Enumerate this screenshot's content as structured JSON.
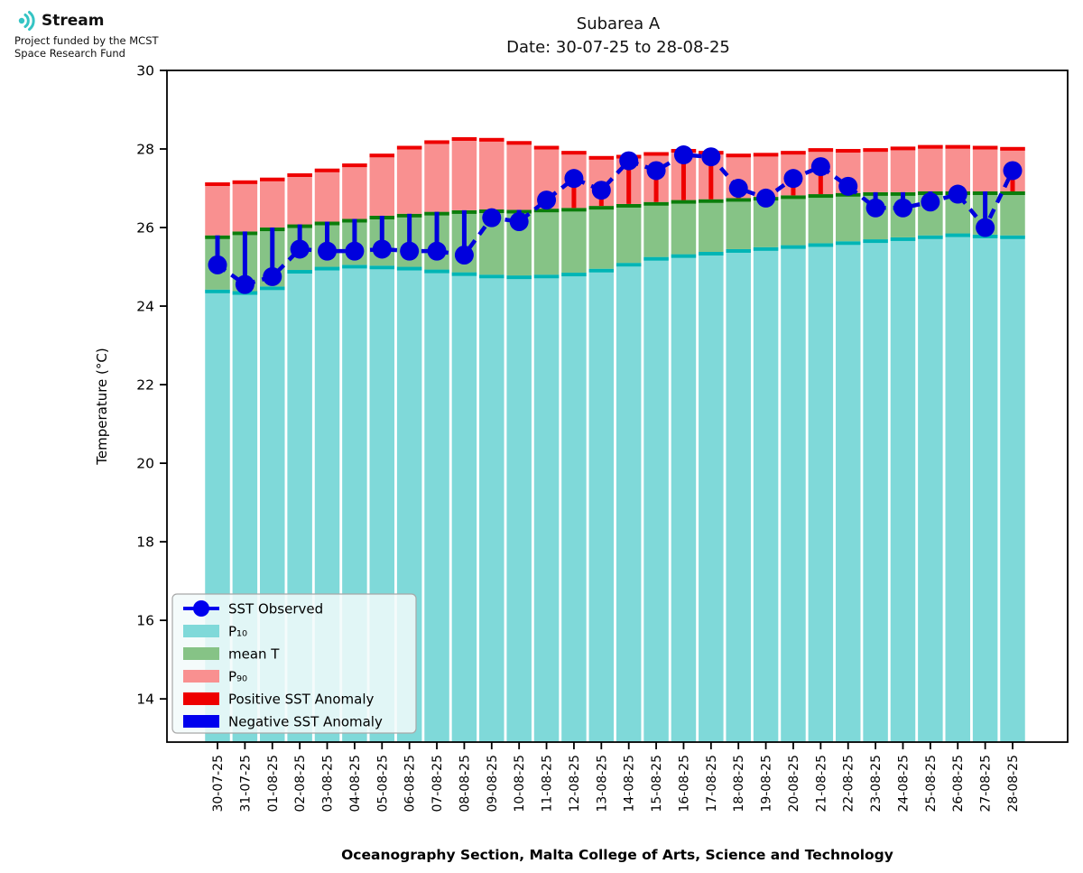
{
  "brand": {
    "name": "Stream",
    "subtitle": "Project funded by the MCST\nSpace Research Fund",
    "icon_color": "#35c4c4"
  },
  "title_line1": "Subarea A",
  "title_line2": "Date: 30-07-25 to 28-08-25",
  "chart_data": {
    "type": "bar-line-combo",
    "title": "Subarea A",
    "subtitle": "Date: 30-07-25 to 28-08-25",
    "xlabel": "Oceanography Section, Malta College of Arts, Science and Technology",
    "ylabel": "Temperature (°C)",
    "ylim": [
      12.9,
      30
    ],
    "yticks": [
      14,
      16,
      18,
      20,
      22,
      24,
      26,
      28,
      30
    ],
    "grid": false,
    "legend_position": "lower-left",
    "categories": [
      "30-07-25",
      "31-07-25",
      "01-08-25",
      "02-08-25",
      "03-08-25",
      "04-08-25",
      "05-08-25",
      "06-08-25",
      "07-08-25",
      "08-08-25",
      "09-08-25",
      "10-08-25",
      "11-08-25",
      "12-08-25",
      "13-08-25",
      "14-08-25",
      "15-08-25",
      "16-08-25",
      "17-08-25",
      "18-08-25",
      "19-08-25",
      "20-08-25",
      "21-08-25",
      "22-08-25",
      "23-08-25",
      "24-08-25",
      "25-08-25",
      "26-08-25",
      "27-08-25",
      "28-08-25"
    ],
    "series": [
      {
        "name": "SST Observed",
        "type": "line",
        "values": [
          25.05,
          24.55,
          24.75,
          25.45,
          25.4,
          25.4,
          25.45,
          25.4,
          25.4,
          25.3,
          26.25,
          26.15,
          26.7,
          27.25,
          26.95,
          27.7,
          27.45,
          27.85,
          27.8,
          27.0,
          26.75,
          27.25,
          27.55,
          27.05,
          26.5,
          26.5,
          26.65,
          26.85,
          26.0,
          27.45
        ]
      },
      {
        "name": "P10",
        "type": "bar",
        "values": [
          24.42,
          24.38,
          24.5,
          24.92,
          25.0,
          25.05,
          25.03,
          25.0,
          24.93,
          24.86,
          24.8,
          24.78,
          24.8,
          24.85,
          24.95,
          25.1,
          25.25,
          25.32,
          25.38,
          25.45,
          25.5,
          25.55,
          25.6,
          25.65,
          25.7,
          25.75,
          25.8,
          25.85,
          25.82,
          25.8
        ]
      },
      {
        "name": "mean T",
        "type": "bar",
        "values": [
          25.8,
          25.9,
          26.0,
          26.08,
          26.15,
          26.22,
          26.3,
          26.35,
          26.4,
          26.44,
          26.46,
          26.45,
          26.48,
          26.5,
          26.55,
          26.6,
          26.65,
          26.7,
          26.72,
          26.75,
          26.78,
          26.82,
          26.85,
          26.88,
          26.9,
          26.9,
          26.92,
          26.92,
          26.92,
          26.92
        ]
      },
      {
        "name": "P90",
        "type": "bar",
        "values": [
          27.15,
          27.2,
          27.27,
          27.38,
          27.5,
          27.63,
          27.88,
          28.08,
          28.22,
          28.3,
          28.28,
          28.2,
          28.08,
          27.95,
          27.82,
          27.85,
          27.92,
          28.0,
          27.95,
          27.88,
          27.9,
          27.95,
          28.02,
          28.0,
          28.02,
          28.06,
          28.1,
          28.1,
          28.08,
          28.05
        ]
      }
    ],
    "anomaly_rule": "SST Observed minus mean T; red line when positive, blue line when negative"
  },
  "legend": {
    "items": [
      {
        "label": "SST Observed",
        "swatch": "line-dot",
        "color": "#0000ee"
      },
      {
        "label": "P₁₀",
        "swatch": "patch",
        "color": "#7fd9d9"
      },
      {
        "label": "mean T",
        "swatch": "patch",
        "color": "#86c386"
      },
      {
        "label": "P₉₀",
        "swatch": "patch",
        "color": "#f99090"
      },
      {
        "label": "Positive SST Anomaly",
        "swatch": "patch",
        "color": "#ee0000"
      },
      {
        "label": "Negative SST Anomaly",
        "swatch": "patch",
        "color": "#0000ee"
      }
    ]
  },
  "colors": {
    "p10_fill": "#7fd9d9",
    "p10_cap": "#00b5b5",
    "mean_fill": "#86c386",
    "mean_cap": "#0b7d0b",
    "p90_fill": "#f99090",
    "p90_cap": "#ee0000",
    "sst_line": "#0000dd",
    "pos_anomaly": "#ee0000",
    "neg_anomaly": "#0000dd",
    "axis": "#000000"
  }
}
